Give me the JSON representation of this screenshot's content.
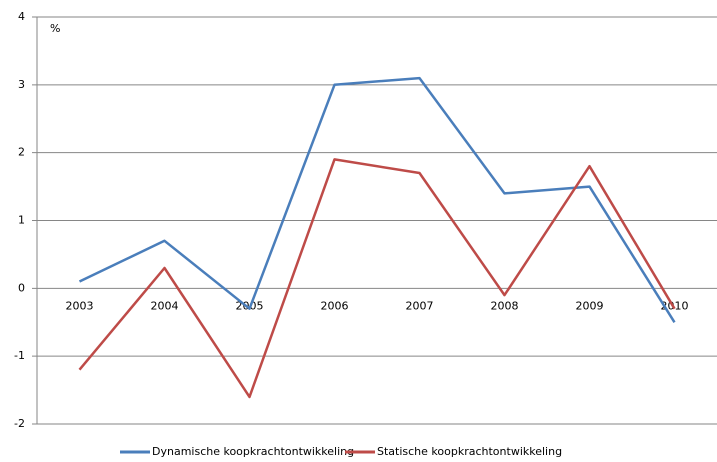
{
  "chart_data": {
    "type": "line",
    "y_label": "%",
    "categories": [
      "2003",
      "2004",
      "2005",
      "2006",
      "2007",
      "2008",
      "2009",
      "2010"
    ],
    "series": [
      {
        "name": "Dynamische koopkrachtontwikkeling",
        "color": "#4a7ebb",
        "values": [
          0.1,
          0.7,
          -0.3,
          3.0,
          3.1,
          1.4,
          1.5,
          -0.5
        ]
      },
      {
        "name": "Statische koopkrachtontwikkeling",
        "color": "#be4b48",
        "values": [
          -1.2,
          0.3,
          -1.6,
          1.9,
          1.7,
          -0.1,
          1.8,
          -0.3
        ]
      }
    ],
    "ylim": [
      -2,
      4
    ],
    "yticks": [
      -2,
      -1,
      0,
      1,
      2,
      3,
      4
    ],
    "grid": true,
    "legend": "bottom"
  }
}
